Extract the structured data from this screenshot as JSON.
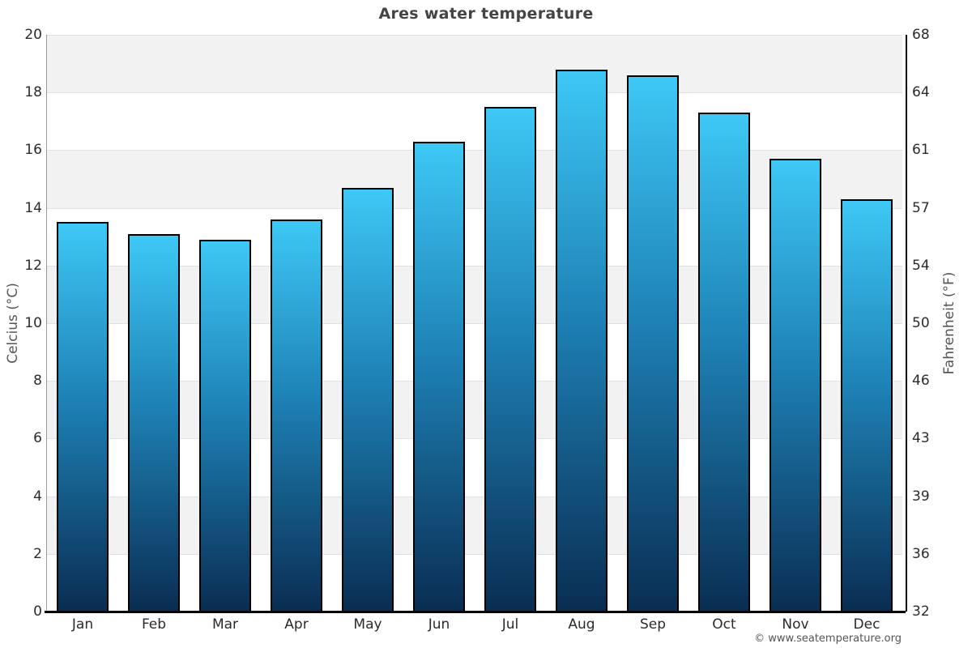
{
  "title": "Ares water temperature",
  "footer": {
    "credit": "© www.seatemperature.org"
  },
  "chart_data": {
    "type": "bar",
    "title": "Ares water temperature",
    "categories": [
      "Jan",
      "Feb",
      "Mar",
      "Apr",
      "May",
      "Jun",
      "Jul",
      "Aug",
      "Sep",
      "Oct",
      "Nov",
      "Dec"
    ],
    "values": [
      13.5,
      13.1,
      12.9,
      13.6,
      14.7,
      16.3,
      17.5,
      18.8,
      18.6,
      17.3,
      15.7,
      14.3
    ],
    "unit": "°C",
    "xlabel": "",
    "ylabel_left": "Celcius (°C)",
    "ylabel_right": "Fahrenheit (°F)",
    "ylim": [
      0,
      20
    ],
    "yticks_celsius": [
      0,
      2,
      4,
      6,
      8,
      10,
      12,
      14,
      16,
      18,
      20
    ],
    "yticks_fahrenheit": [
      32,
      36,
      39,
      43,
      46,
      50,
      54,
      57,
      61,
      64,
      68
    ],
    "grid": true,
    "legend_position": "none",
    "colors": {
      "bar_gradient_top": "#3ec8f5",
      "bar_gradient_mid": "#1e82b6",
      "bar_gradient_bottom": "#0a2d52",
      "bar_border": "#000000",
      "band_fill": "#f2f2f2",
      "gridline": "#e1e1e1",
      "left_axis_line": "#999999",
      "right_axis_line": "#000000",
      "bottom_axis_line": "#000000",
      "title_color": "#444444",
      "tick_label_color": "#2b2b2b",
      "axis_title_color": "#555555",
      "footer_color": "#555555",
      "background": "#ffffff"
    }
  }
}
